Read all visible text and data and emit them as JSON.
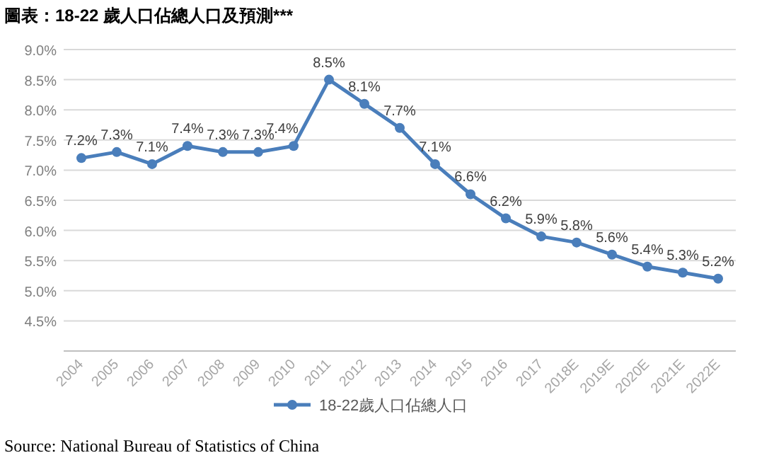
{
  "chart_data": {
    "type": "line",
    "title": "圖表：18-22 歲人口佔總人口及預測***",
    "categories": [
      "2004",
      "2005",
      "2006",
      "2007",
      "2008",
      "2009",
      "2010",
      "2011",
      "2012",
      "2013",
      "2014",
      "2015",
      "2016",
      "2017",
      "2018E",
      "2019E",
      "2020E",
      "2021E",
      "2022E"
    ],
    "series": [
      {
        "name": "18-22歲人口佔總人口",
        "color": "#4a7ebb",
        "values": [
          7.2,
          7.3,
          7.1,
          7.4,
          7.3,
          7.3,
          7.4,
          8.5,
          8.1,
          7.7,
          7.1,
          6.6,
          6.2,
          5.9,
          5.8,
          5.6,
          5.4,
          5.3,
          5.2
        ]
      }
    ],
    "value_labels": [
      "7.2%",
      "7.3%",
      "7.1%",
      "7.4%",
      "7.3%",
      "7.3%",
      "7.4%",
      "8.5%",
      "8.1%",
      "7.7%",
      "7.1%",
      "6.6%",
      "6.2%",
      "5.9%",
      "5.8%",
      "5.6%",
      "5.4%",
      "5.3%",
      "5.2%"
    ],
    "ylim": [
      4,
      9
    ],
    "yticks": [
      {
        "value": 4,
        "label": null
      },
      {
        "value": 4.5,
        "label": "4.5%"
      },
      {
        "value": 5,
        "label": "5.0%"
      },
      {
        "value": 5.5,
        "label": "5.5%"
      },
      {
        "value": 6,
        "label": "6.0%"
      },
      {
        "value": 6.5,
        "label": "6.5%"
      },
      {
        "value": 7,
        "label": "7.0%"
      },
      {
        "value": 7.5,
        "label": "7.5%"
      },
      {
        "value": 8,
        "label": "8.0%"
      },
      {
        "value": 8.5,
        "label": "8.5%"
      },
      {
        "value": 9,
        "label": "9.0%"
      }
    ],
    "grid": "y",
    "legend": "bottom",
    "marker": "circle",
    "line_style": "solid",
    "annotations": [
      "Source: National Bureau of Statistics of China"
    ]
  }
}
